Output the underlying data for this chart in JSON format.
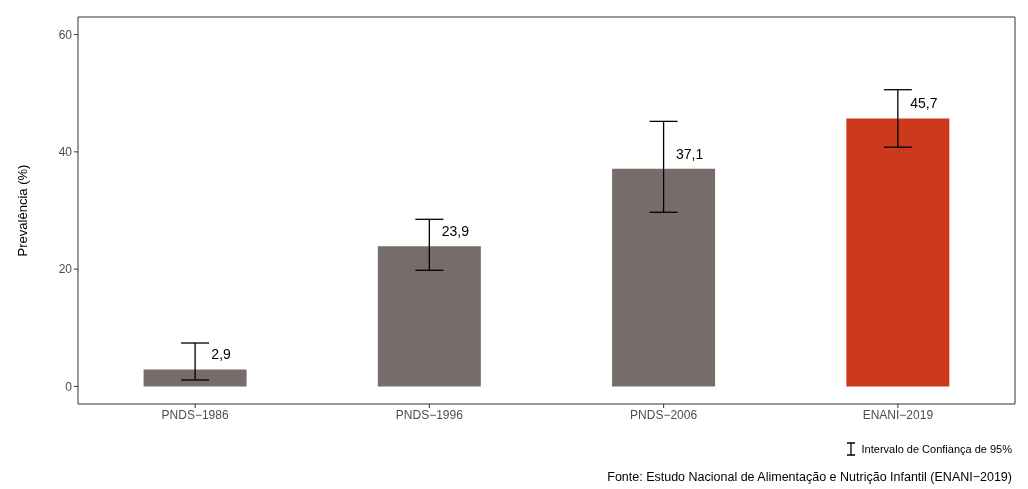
{
  "chart_data": {
    "type": "bar",
    "ylabel": "Prevalência (%)",
    "categories": [
      "PNDS−1986",
      "PNDS−1996",
      "PNDS−2006",
      "ENANI−2019"
    ],
    "values": [
      2.9,
      23.9,
      37.1,
      45.7
    ],
    "colors": [
      "#766c69",
      "#766c69",
      "#766c69",
      "#cc3a1d"
    ],
    "errors": [
      [
        1.1,
        7.4
      ],
      [
        19.8,
        28.5
      ],
      [
        29.7,
        45.2
      ],
      [
        40.8,
        50.6
      ]
    ],
    "value_labels": [
      "2,9",
      "23,9",
      "37,1",
      "45,7"
    ],
    "ylim": [
      -3,
      63
    ],
    "yticks": [
      0,
      20,
      40,
      60
    ],
    "grid": false,
    "annotations": [
      "Intervalo de Confiança de 95%",
      "Fonte: Estudo Nacional de Alimentação e Nutrição Infantil (ENANI−2019)"
    ]
  }
}
